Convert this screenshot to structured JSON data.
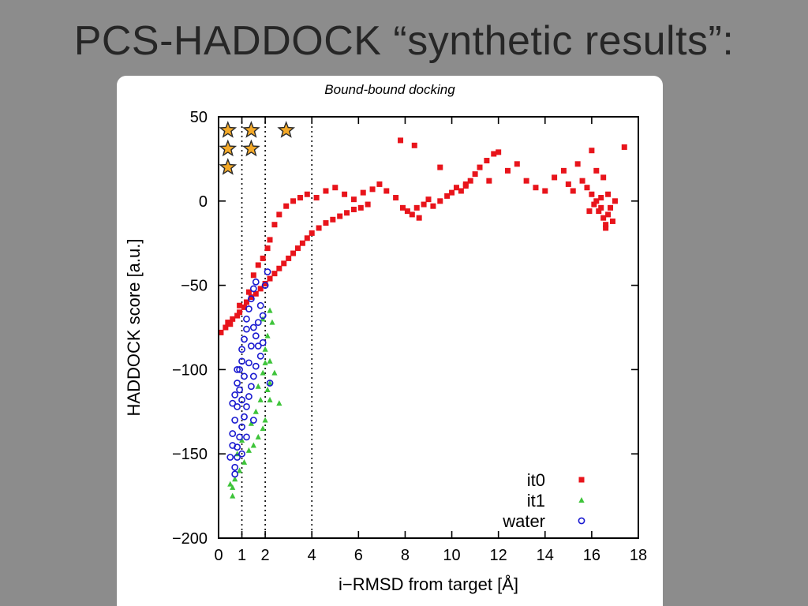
{
  "slide": {
    "title": "PCS-HADDOCK “synthetic results”:"
  },
  "chart_data": {
    "type": "scatter",
    "subtitle": "Bound-bound docking",
    "xlabel": "i−RMSD from target [Å]",
    "ylabel": "HADDOCK score [a.u.]",
    "xlim": [
      0,
      18
    ],
    "ylim": [
      -200,
      50
    ],
    "xticks": [
      {
        "value": 0,
        "label": "0"
      },
      {
        "value": 1,
        "label": "1"
      },
      {
        "value": 2,
        "label": "2"
      },
      {
        "value": 4,
        "label": "4"
      },
      {
        "value": 6,
        "label": "6"
      },
      {
        "value": 8,
        "label": "8"
      },
      {
        "value": 10,
        "label": "10"
      },
      {
        "value": 12,
        "label": "12"
      },
      {
        "value": 14,
        "label": "14"
      },
      {
        "value": 16,
        "label": "16"
      },
      {
        "value": 18,
        "label": "18"
      }
    ],
    "yticks": [
      {
        "value": 50,
        "label": "50"
      },
      {
        "value": 0,
        "label": "0"
      },
      {
        "value": -50,
        "label": "−50"
      },
      {
        "value": -100,
        "label": "−100"
      },
      {
        "value": -150,
        "label": "−150"
      },
      {
        "value": -200,
        "label": "−200"
      }
    ],
    "reference_lines_x": [
      1,
      2,
      4
    ],
    "legend_position": "bottom-right",
    "colors": {
      "it0": "#e8141b",
      "it1": "#3ec43a",
      "water": "#1a1ad0",
      "star": "#f4a928"
    },
    "series": [
      {
        "name": "it0",
        "marker": "square",
        "points": [
          [
            0.1,
            -78
          ],
          [
            0.3,
            -75
          ],
          [
            0.5,
            -73
          ],
          [
            0.6,
            -70
          ],
          [
            0.8,
            -68
          ],
          [
            0.9,
            -66
          ],
          [
            1.1,
            -63
          ],
          [
            1.2,
            -60
          ],
          [
            1.4,
            -57
          ],
          [
            1.6,
            -55
          ],
          [
            1.8,
            -52
          ],
          [
            2.0,
            -49
          ],
          [
            2.2,
            -46
          ],
          [
            2.4,
            -43
          ],
          [
            2.6,
            -40
          ],
          [
            2.8,
            -37
          ],
          [
            3.0,
            -34
          ],
          [
            3.2,
            -31
          ],
          [
            3.4,
            -28
          ],
          [
            3.6,
            -25
          ],
          [
            3.8,
            -22
          ],
          [
            4.0,
            -19
          ],
          [
            4.3,
            -16
          ],
          [
            4.6,
            -13
          ],
          [
            4.9,
            -11
          ],
          [
            5.2,
            -9
          ],
          [
            5.5,
            -7
          ],
          [
            5.8,
            -5
          ],
          [
            6.1,
            -4
          ],
          [
            6.4,
            -2
          ],
          [
            0.4,
            -72
          ],
          [
            0.9,
            -62
          ],
          [
            1.3,
            -54
          ],
          [
            1.5,
            -44
          ],
          [
            1.7,
            -38
          ],
          [
            1.9,
            -34
          ],
          [
            2.1,
            -28
          ],
          [
            2.2,
            -23
          ],
          [
            2.4,
            -14
          ],
          [
            2.6,
            -8
          ],
          [
            2.9,
            -3
          ],
          [
            3.2,
            0
          ],
          [
            3.5,
            2
          ],
          [
            3.8,
            4
          ],
          [
            4.2,
            2
          ],
          [
            4.6,
            6
          ],
          [
            5.0,
            8
          ],
          [
            5.4,
            4
          ],
          [
            5.8,
            1
          ],
          [
            6.2,
            5
          ],
          [
            6.6,
            7
          ],
          [
            6.9,
            10
          ],
          [
            7.2,
            6
          ],
          [
            7.6,
            2
          ],
          [
            7.9,
            -4
          ],
          [
            8.1,
            -6
          ],
          [
            8.3,
            -8
          ],
          [
            8.5,
            -4
          ],
          [
            8.6,
            -10
          ],
          [
            8.8,
            -2
          ],
          [
            9.0,
            1
          ],
          [
            9.2,
            -3
          ],
          [
            9.5,
            0
          ],
          [
            9.8,
            3
          ],
          [
            10.0,
            5
          ],
          [
            10.2,
            8
          ],
          [
            10.4,
            6
          ],
          [
            10.6,
            9
          ],
          [
            10.8,
            12
          ],
          [
            11.0,
            16
          ],
          [
            11.2,
            20
          ],
          [
            11.5,
            24
          ],
          [
            11.8,
            28
          ],
          [
            12.0,
            29
          ],
          [
            7.8,
            36
          ],
          [
            8.4,
            33
          ],
          [
            9.5,
            20
          ],
          [
            10.6,
            10
          ],
          [
            11.6,
            12
          ],
          [
            12.4,
            18
          ],
          [
            12.8,
            22
          ],
          [
            13.2,
            12
          ],
          [
            13.6,
            8
          ],
          [
            14.0,
            6
          ],
          [
            14.4,
            14
          ],
          [
            14.8,
            18
          ],
          [
            15.0,
            10
          ],
          [
            15.2,
            6
          ],
          [
            15.4,
            22
          ],
          [
            15.6,
            12
          ],
          [
            15.8,
            8
          ],
          [
            16.0,
            4
          ],
          [
            16.1,
            -2
          ],
          [
            16.2,
            0
          ],
          [
            16.3,
            -6
          ],
          [
            16.4,
            2
          ],
          [
            16.5,
            -10
          ],
          [
            16.6,
            -14
          ],
          [
            16.7,
            -8
          ],
          [
            16.8,
            -4
          ],
          [
            16.9,
            -12
          ],
          [
            17.0,
            0
          ],
          [
            16.2,
            18
          ],
          [
            16.5,
            14
          ],
          [
            16.0,
            30
          ],
          [
            17.4,
            32
          ],
          [
            16.6,
            -16
          ],
          [
            16.4,
            -4
          ],
          [
            16.7,
            4
          ],
          [
            15.9,
            -6
          ]
        ]
      },
      {
        "name": "it1",
        "marker": "triangle",
        "points": [
          [
            0.5,
            -168
          ],
          [
            0.6,
            -175
          ],
          [
            0.7,
            -165
          ],
          [
            0.9,
            -160
          ],
          [
            0.8,
            -150
          ],
          [
            1.1,
            -155
          ],
          [
            1.3,
            -148
          ],
          [
            1.5,
            -145
          ],
          [
            1.7,
            -140
          ],
          [
            1.9,
            -135
          ],
          [
            2.0,
            -130
          ],
          [
            1.6,
            -125
          ],
          [
            1.8,
            -118
          ],
          [
            2.1,
            -112
          ],
          [
            2.2,
            -108
          ],
          [
            2.4,
            -102
          ],
          [
            2.2,
            -95
          ],
          [
            2.0,
            -88
          ],
          [
            2.1,
            -80
          ],
          [
            2.3,
            -72
          ],
          [
            2.2,
            -65
          ],
          [
            1.9,
            -70
          ],
          [
            2.6,
            -120
          ],
          [
            2.0,
            -96
          ],
          [
            1.7,
            -110
          ],
          [
            0.6,
            -170
          ],
          [
            1.4,
            -132
          ],
          [
            1.0,
            -142
          ],
          [
            1.9,
            -102
          ],
          [
            2.2,
            -118
          ]
        ]
      },
      {
        "name": "water",
        "marker": "circle",
        "points": [
          [
            0.5,
            -152
          ],
          [
            0.6,
            -145
          ],
          [
            0.7,
            -158
          ],
          [
            0.6,
            -138
          ],
          [
            0.7,
            -130
          ],
          [
            0.8,
            -122
          ],
          [
            0.7,
            -115
          ],
          [
            0.8,
            -108
          ],
          [
            0.9,
            -100
          ],
          [
            1.0,
            -95
          ],
          [
            1.0,
            -88
          ],
          [
            1.1,
            -82
          ],
          [
            1.2,
            -76
          ],
          [
            1.2,
            -70
          ],
          [
            1.3,
            -64
          ],
          [
            1.4,
            -58
          ],
          [
            1.5,
            -52
          ],
          [
            1.6,
            -48
          ],
          [
            1.8,
            -62
          ],
          [
            1.9,
            -68
          ],
          [
            1.5,
            -75
          ],
          [
            1.6,
            -80
          ],
          [
            1.7,
            -86
          ],
          [
            1.8,
            -92
          ],
          [
            1.6,
            -98
          ],
          [
            1.5,
            -104
          ],
          [
            1.4,
            -110
          ],
          [
            1.3,
            -116
          ],
          [
            1.2,
            -122
          ],
          [
            1.1,
            -128
          ],
          [
            1.0,
            -134
          ],
          [
            0.9,
            -140
          ],
          [
            0.8,
            -146
          ],
          [
            0.8,
            -152
          ],
          [
            0.7,
            -162
          ],
          [
            1.0,
            -118
          ],
          [
            1.3,
            -96
          ],
          [
            1.7,
            -72
          ],
          [
            2.1,
            -42
          ],
          [
            2.0,
            -50
          ],
          [
            2.2,
            -108
          ],
          [
            1.1,
            -104
          ],
          [
            0.9,
            -112
          ],
          [
            1.4,
            -86
          ],
          [
            1.9,
            -84
          ],
          [
            0.6,
            -120
          ],
          [
            0.8,
            -100
          ],
          [
            1.2,
            -140
          ],
          [
            1.5,
            -130
          ],
          [
            1.0,
            -150
          ]
        ]
      }
    ],
    "star_markers": [
      [
        0.4,
        42
      ],
      [
        1.4,
        42
      ],
      [
        2.9,
        42
      ],
      [
        0.4,
        31
      ],
      [
        1.4,
        31
      ],
      [
        0.4,
        20
      ]
    ]
  }
}
